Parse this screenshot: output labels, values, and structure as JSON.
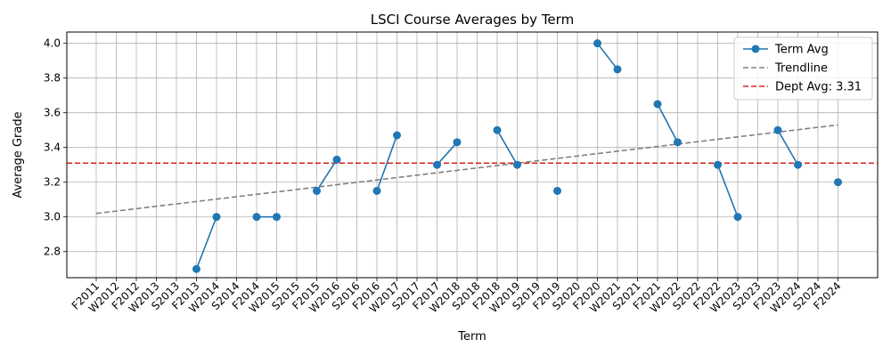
{
  "chart_data": {
    "type": "line",
    "title": "LSCI Course Averages by Term",
    "xlabel": "Term",
    "ylabel": "Average Grade",
    "ylim": [
      2.65,
      4.065
    ],
    "yticks": [
      "2.8",
      "3.0",
      "3.2",
      "3.4",
      "3.6",
      "3.8",
      "4.0"
    ],
    "grid": true,
    "legend_position": "top-right",
    "categories": [
      "F2011",
      "W2012",
      "F2012",
      "W2013",
      "S2013",
      "F2013",
      "W2014",
      "S2014",
      "F2014",
      "W2015",
      "S2015",
      "F2015",
      "W2016",
      "S2016",
      "F2016",
      "W2017",
      "S2017",
      "F2017",
      "W2018",
      "S2018",
      "F2018",
      "W2019",
      "S2019",
      "F2019",
      "S2020",
      "F2020",
      "W2021",
      "S2021",
      "F2021",
      "W2022",
      "S2022",
      "F2022",
      "W2023",
      "S2023",
      "F2023",
      "W2024",
      "S2024",
      "F2024"
    ],
    "series": [
      {
        "name": "Term Avg",
        "color": "#1f77b4",
        "values": [
          null,
          null,
          null,
          null,
          null,
          2.7,
          3.0,
          null,
          3.0,
          3.0,
          null,
          3.15,
          3.33,
          null,
          3.15,
          3.47,
          null,
          3.3,
          3.43,
          null,
          3.5,
          3.3,
          null,
          3.15,
          null,
          4.0,
          3.85,
          null,
          3.65,
          3.43,
          null,
          3.3,
          3.0,
          null,
          3.5,
          3.3,
          null,
          3.2
        ],
        "segments": [
          [
            5,
            6
          ],
          [
            8,
            9
          ],
          [
            11,
            12
          ],
          [
            14,
            15
          ],
          [
            17,
            18
          ],
          [
            20,
            21
          ],
          [
            23,
            23
          ],
          [
            25,
            26
          ],
          [
            28,
            29
          ],
          [
            31,
            32
          ],
          [
            34,
            35
          ],
          [
            37,
            37
          ]
        ]
      },
      {
        "name": "Trendline",
        "color": "#808080",
        "style": "dashed",
        "start": 3.02,
        "end": 3.53
      },
      {
        "name": "Dept Avg: 3.31",
        "color": "#d62728",
        "style": "dashed",
        "value": 3.31
      }
    ]
  }
}
